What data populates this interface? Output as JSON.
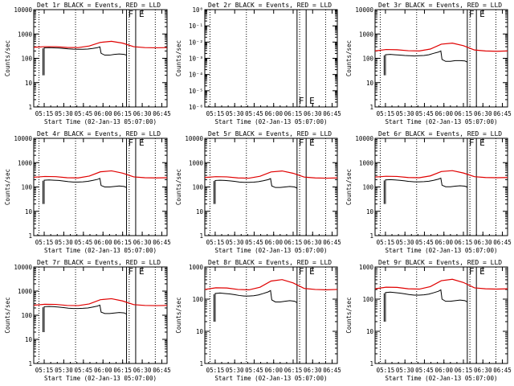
{
  "chart_data": [
    {
      "type": "line",
      "title": "Det 1r BLACK = Events, RED = LLD",
      "xlabel": "Start Time (02-Jan-13 05:07:00)",
      "ylabel": "Counts/sec",
      "log_y": true,
      "ylim": [
        1,
        10000
      ],
      "yticks": [
        "1",
        "10",
        "100",
        "1000",
        "10000"
      ],
      "xticks": [
        "05:15",
        "05:30",
        "05:45",
        "06:00",
        "06:15",
        "06:30",
        "06:45"
      ],
      "events": [
        [
          0,
          270
        ],
        [
          2,
          275
        ],
        [
          4,
          270
        ],
        [
          6,
          265
        ],
        [
          8,
          255
        ],
        [
          10,
          245
        ],
        [
          12,
          238
        ],
        [
          14,
          235
        ],
        [
          16,
          235
        ],
        [
          18,
          240
        ],
        [
          20,
          255
        ],
        [
          22,
          275
        ],
        [
          23,
          295
        ],
        [
          23.5,
          160
        ],
        [
          25,
          135
        ],
        [
          27,
          135
        ],
        [
          29,
          145
        ],
        [
          31,
          150
        ],
        [
          33,
          145
        ],
        [
          34,
          135
        ]
      ],
      "lld": [
        [
          0,
          285
        ],
        [
          4,
          300
        ],
        [
          8,
          300
        ],
        [
          12,
          280
        ],
        [
          16,
          275
        ],
        [
          20,
          320
        ],
        [
          24,
          450
        ],
        [
          28,
          500
        ],
        [
          32,
          420
        ],
        [
          36,
          300
        ],
        [
          40,
          275
        ],
        [
          44,
          270
        ],
        [
          48,
          275
        ]
      ],
      "flags": [
        "F",
        "E"
      ]
    },
    {
      "type": "line",
      "title": "Det 2r BLACK = Events, RED = LLD",
      "xlabel": "Start Time (02-Jan-13 05:07:00)",
      "ylabel": "Counts/sec",
      "log_y": true,
      "ylim": [
        1e-06,
        1
      ],
      "yticks": [
        "10⁻⁶",
        "10⁻⁵",
        "10⁻⁴",
        "10⁻³",
        "10⁻²",
        "10⁻¹",
        "10⁰"
      ],
      "xticks": [
        "05:15",
        "05:30",
        "05:45",
        "06:00",
        "06:15",
        "06:30",
        "06:45"
      ],
      "events": [],
      "lld": [],
      "flags": [
        "F",
        "E"
      ]
    },
    {
      "type": "line",
      "title": "Det 3r BLACK = Events, RED = LLD",
      "xlabel": "Start Time (02-Jan-13 05:07:00)",
      "ylabel": "Counts/sec",
      "log_y": true,
      "ylim": [
        1,
        10000
      ],
      "yticks": [
        "1",
        "10",
        "100",
        "1000",
        "10000"
      ],
      "xticks": [
        "05:15",
        "05:30",
        "05:45",
        "06:00",
        "06:15",
        "06:30",
        "06:45"
      ],
      "events": [
        [
          0,
          140
        ],
        [
          2,
          145
        ],
        [
          4,
          140
        ],
        [
          6,
          135
        ],
        [
          8,
          130
        ],
        [
          10,
          128
        ],
        [
          12,
          125
        ],
        [
          14,
          128
        ],
        [
          16,
          130
        ],
        [
          18,
          140
        ],
        [
          20,
          160
        ],
        [
          22,
          180
        ],
        [
          23,
          200
        ],
        [
          23.5,
          90
        ],
        [
          25,
          75
        ],
        [
          27,
          75
        ],
        [
          29,
          80
        ],
        [
          31,
          80
        ],
        [
          33,
          78
        ],
        [
          34,
          70
        ]
      ],
      "lld": [
        [
          0,
          200
        ],
        [
          4,
          230
        ],
        [
          8,
          225
        ],
        [
          12,
          205
        ],
        [
          16,
          200
        ],
        [
          20,
          240
        ],
        [
          24,
          380
        ],
        [
          28,
          420
        ],
        [
          32,
          330
        ],
        [
          36,
          220
        ],
        [
          40,
          200
        ],
        [
          44,
          195
        ],
        [
          48,
          200
        ]
      ],
      "flags": [
        "F",
        "E"
      ]
    },
    {
      "type": "line",
      "title": "Det 4r BLACK = Events, RED = LLD",
      "xlabel": "Start Time (02-Jan-13 05:07:00)",
      "ylabel": "Counts/sec",
      "log_y": true,
      "ylim": [
        1,
        10000
      ],
      "yticks": [
        "1",
        "10",
        "100",
        "1000",
        "10000"
      ],
      "xticks": [
        "05:15",
        "05:30",
        "05:45",
        "06:00",
        "06:15",
        "06:30",
        "06:45"
      ],
      "events": [
        [
          0,
          190
        ],
        [
          2,
          195
        ],
        [
          4,
          190
        ],
        [
          6,
          185
        ],
        [
          8,
          175
        ],
        [
          10,
          165
        ],
        [
          12,
          160
        ],
        [
          14,
          160
        ],
        [
          16,
          162
        ],
        [
          18,
          170
        ],
        [
          20,
          185
        ],
        [
          22,
          205
        ],
        [
          23,
          225
        ],
        [
          23.5,
          115
        ],
        [
          25,
          100
        ],
        [
          27,
          100
        ],
        [
          29,
          105
        ],
        [
          31,
          110
        ],
        [
          33,
          105
        ],
        [
          34,
          95
        ]
      ],
      "lld": [
        [
          0,
          250
        ],
        [
          4,
          270
        ],
        [
          8,
          265
        ],
        [
          12,
          240
        ],
        [
          16,
          235
        ],
        [
          20,
          280
        ],
        [
          24,
          420
        ],
        [
          28,
          460
        ],
        [
          32,
          370
        ],
        [
          36,
          260
        ],
        [
          40,
          240
        ],
        [
          44,
          235
        ],
        [
          48,
          240
        ]
      ],
      "flags": [
        "F",
        "E"
      ]
    },
    {
      "type": "line",
      "title": "Det 5r BLACK = Events, RED = LLD",
      "xlabel": "Start Time (02-Jan-13 05:07:00)",
      "ylabel": "Counts/sec",
      "log_y": true,
      "ylim": [
        1,
        10000
      ],
      "yticks": [
        "1",
        "10",
        "100",
        "1000",
        "10000"
      ],
      "xticks": [
        "05:15",
        "05:30",
        "05:45",
        "06:00",
        "06:15",
        "06:30",
        "06:45"
      ],
      "events": [
        [
          0,
          185
        ],
        [
          2,
          190
        ],
        [
          4,
          185
        ],
        [
          6,
          178
        ],
        [
          8,
          170
        ],
        [
          10,
          160
        ],
        [
          12,
          155
        ],
        [
          14,
          155
        ],
        [
          16,
          158
        ],
        [
          18,
          165
        ],
        [
          20,
          180
        ],
        [
          22,
          200
        ],
        [
          23,
          220
        ],
        [
          23.5,
          110
        ],
        [
          25,
          95
        ],
        [
          27,
          95
        ],
        [
          29,
          100
        ],
        [
          31,
          105
        ],
        [
          33,
          100
        ],
        [
          34,
          90
        ]
      ],
      "lld": [
        [
          0,
          245
        ],
        [
          4,
          265
        ],
        [
          8,
          260
        ],
        [
          12,
          235
        ],
        [
          16,
          230
        ],
        [
          20,
          275
        ],
        [
          24,
          415
        ],
        [
          28,
          455
        ],
        [
          32,
          365
        ],
        [
          36,
          255
        ],
        [
          40,
          235
        ],
        [
          44,
          230
        ],
        [
          48,
          235
        ]
      ],
      "flags": [
        "F",
        "E"
      ]
    },
    {
      "type": "line",
      "title": "Det 6r BLACK = Events, RED = LLD",
      "xlabel": "Start Time (02-Jan-13 05:07:00)",
      "ylabel": "Counts/sec",
      "log_y": true,
      "ylim": [
        1,
        10000
      ],
      "yticks": [
        "1",
        "10",
        "100",
        "1000",
        "10000"
      ],
      "xticks": [
        "05:15",
        "05:30",
        "05:45",
        "06:00",
        "06:15",
        "06:30",
        "06:45"
      ],
      "events": [
        [
          0,
          195
        ],
        [
          2,
          200
        ],
        [
          4,
          195
        ],
        [
          6,
          188
        ],
        [
          8,
          178
        ],
        [
          10,
          168
        ],
        [
          12,
          162
        ],
        [
          14,
          162
        ],
        [
          16,
          165
        ],
        [
          18,
          172
        ],
        [
          20,
          188
        ],
        [
          22,
          210
        ],
        [
          23,
          230
        ],
        [
          23.5,
          118
        ],
        [
          25,
          102
        ],
        [
          27,
          102
        ],
        [
          29,
          108
        ],
        [
          31,
          112
        ],
        [
          33,
          108
        ],
        [
          34,
          98
        ]
      ],
      "lld": [
        [
          0,
          255
        ],
        [
          4,
          275
        ],
        [
          8,
          270
        ],
        [
          12,
          245
        ],
        [
          16,
          240
        ],
        [
          20,
          285
        ],
        [
          24,
          430
        ],
        [
          28,
          470
        ],
        [
          32,
          375
        ],
        [
          36,
          265
        ],
        [
          40,
          245
        ],
        [
          44,
          240
        ],
        [
          48,
          245
        ]
      ],
      "flags": [
        "F",
        "E"
      ]
    },
    {
      "type": "line",
      "title": "Det 7r BLACK = Events, RED = LLD",
      "xlabel": "Start Time (02-Jan-13 05:07:00)",
      "ylabel": "Counts/sec",
      "log_y": true,
      "ylim": [
        1,
        10000
      ],
      "yticks": [
        "1",
        "10",
        "100",
        "1000",
        "10000"
      ],
      "xticks": [
        "05:15",
        "05:30",
        "05:45",
        "06:00",
        "06:15",
        "06:30",
        "06:45"
      ],
      "events": [
        [
          0,
          225
        ],
        [
          2,
          230
        ],
        [
          4,
          225
        ],
        [
          6,
          218
        ],
        [
          8,
          208
        ],
        [
          10,
          196
        ],
        [
          12,
          190
        ],
        [
          14,
          190
        ],
        [
          16,
          193
        ],
        [
          18,
          200
        ],
        [
          20,
          218
        ],
        [
          22,
          240
        ],
        [
          23,
          262
        ],
        [
          23.5,
          135
        ],
        [
          25,
          118
        ],
        [
          27,
          118
        ],
        [
          29,
          124
        ],
        [
          31,
          130
        ],
        [
          33,
          125
        ],
        [
          34,
          112
        ]
      ],
      "lld": [
        [
          0,
          260
        ],
        [
          4,
          285
        ],
        [
          8,
          280
        ],
        [
          12,
          255
        ],
        [
          16,
          250
        ],
        [
          20,
          295
        ],
        [
          24,
          440
        ],
        [
          28,
          485
        ],
        [
          32,
          390
        ],
        [
          36,
          275
        ],
        [
          40,
          255
        ],
        [
          44,
          250
        ],
        [
          48,
          255
        ]
      ],
      "flags": [
        "F",
        "E"
      ]
    },
    {
      "type": "line",
      "title": "Det 8r BLACK = Events, RED = LLD",
      "xlabel": "Start Time (02-Jan-13 05:07:00)",
      "ylabel": "Counts/sec",
      "log_y": true,
      "ylim": [
        1,
        1000
      ],
      "yticks": [
        "1",
        "10",
        "100",
        "1000"
      ],
      "xticks": [
        "05:15",
        "05:30",
        "05:45",
        "06:00",
        "06:15",
        "06:30",
        "06:45"
      ],
      "events": [
        [
          0,
          150
        ],
        [
          2,
          155
        ],
        [
          4,
          150
        ],
        [
          6,
          145
        ],
        [
          8,
          138
        ],
        [
          10,
          130
        ],
        [
          12,
          125
        ],
        [
          14,
          125
        ],
        [
          16,
          128
        ],
        [
          18,
          135
        ],
        [
          20,
          150
        ],
        [
          22,
          168
        ],
        [
          23,
          185
        ],
        [
          23.5,
          95
        ],
        [
          25,
          82
        ],
        [
          27,
          82
        ],
        [
          29,
          86
        ],
        [
          31,
          90
        ],
        [
          33,
          86
        ],
        [
          34,
          78
        ]
      ],
      "lld": [
        [
          0,
          200
        ],
        [
          4,
          225
        ],
        [
          8,
          222
        ],
        [
          12,
          200
        ],
        [
          16,
          195
        ],
        [
          20,
          235
        ],
        [
          24,
          365
        ],
        [
          28,
          405
        ],
        [
          32,
          320
        ],
        [
          36,
          215
        ],
        [
          40,
          200
        ],
        [
          44,
          195
        ],
        [
          48,
          200
        ]
      ],
      "flags": [
        "F",
        "E"
      ]
    },
    {
      "type": "line",
      "title": "Det 9r BLACK = Events, RED = LLD",
      "xlabel": "Start Time (02-Jan-13 05:07:00)",
      "ylabel": "Counts/sec",
      "log_y": true,
      "ylim": [
        1,
        1000
      ],
      "yticks": [
        "1",
        "10",
        "100",
        "1000"
      ],
      "xticks": [
        "05:15",
        "05:30",
        "05:45",
        "06:00",
        "06:15",
        "06:30",
        "06:45"
      ],
      "events": [
        [
          0,
          160
        ],
        [
          2,
          165
        ],
        [
          4,
          160
        ],
        [
          6,
          154
        ],
        [
          8,
          146
        ],
        [
          10,
          138
        ],
        [
          12,
          133
        ],
        [
          14,
          133
        ],
        [
          16,
          136
        ],
        [
          18,
          143
        ],
        [
          20,
          158
        ],
        [
          22,
          176
        ],
        [
          23,
          195
        ],
        [
          23.5,
          100
        ],
        [
          25,
          86
        ],
        [
          27,
          86
        ],
        [
          29,
          90
        ],
        [
          31,
          94
        ],
        [
          33,
          90
        ],
        [
          34,
          82
        ]
      ],
      "lld": [
        [
          0,
          210
        ],
        [
          4,
          235
        ],
        [
          8,
          232
        ],
        [
          12,
          210
        ],
        [
          16,
          205
        ],
        [
          20,
          245
        ],
        [
          24,
          375
        ],
        [
          28,
          415
        ],
        [
          32,
          330
        ],
        [
          36,
          225
        ],
        [
          40,
          210
        ],
        [
          44,
          205
        ],
        [
          48,
          210
        ]
      ],
      "flags": [
        "F",
        "E"
      ]
    }
  ]
}
